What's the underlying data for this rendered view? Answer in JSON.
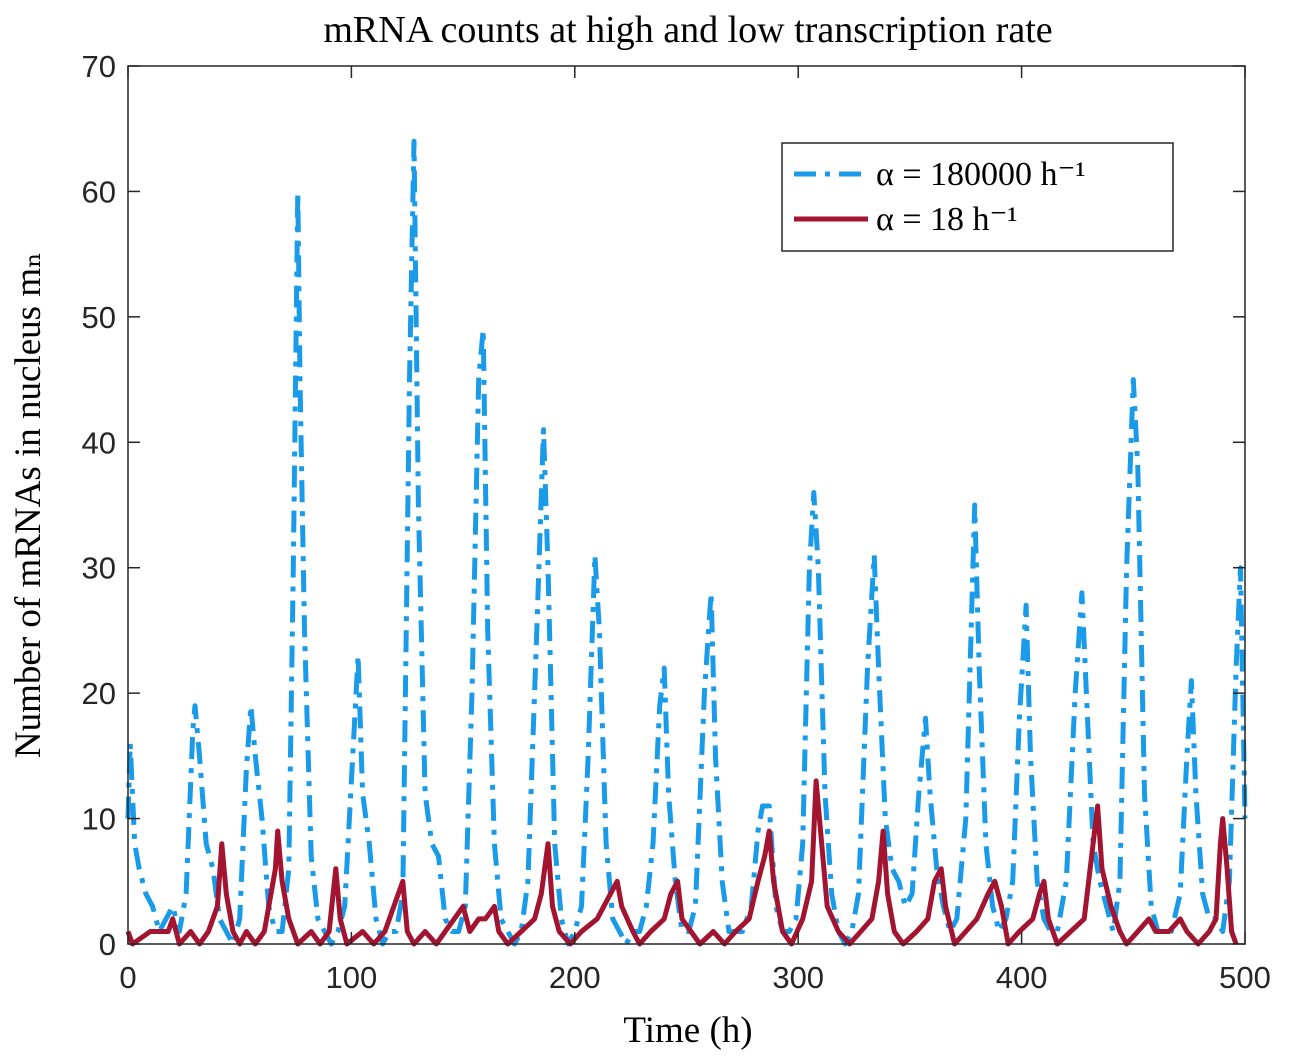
{
  "chart_data": {
    "type": "line",
    "title": "mRNA counts at high and low transcription rate",
    "x_label": "Time (h)",
    "y_label": "Number of mRNAs in nucleus mₙ",
    "xlim": [
      0,
      500
    ],
    "xticks": [
      0,
      100,
      200,
      300,
      400,
      500
    ],
    "ylim": [
      0,
      70
    ],
    "yticks": [
      0,
      10,
      20,
      30,
      40,
      50,
      60,
      70
    ],
    "legend_position": "upper right",
    "series": [
      {
        "name": "α = 180000 h⁻¹",
        "color": "#1a9bea",
        "dash": "dashdot",
        "x": [
          0,
          1,
          3,
          5,
          8,
          11,
          14,
          17,
          20,
          23,
          26,
          29,
          30,
          32,
          35,
          38,
          41,
          44,
          47,
          50,
          53,
          55,
          57,
          60,
          63,
          66,
          69,
          72,
          74,
          76,
          77,
          79,
          82,
          85,
          88,
          91,
          94,
          97,
          100,
          103,
          105,
          108,
          111,
          114,
          117,
          120,
          123,
          126,
          128,
          130,
          133,
          136,
          139,
          142,
          145,
          148,
          151,
          154,
          157,
          159,
          161,
          164,
          167,
          170,
          173,
          176,
          179,
          183,
          186,
          188,
          191,
          194,
          197,
          200,
          203,
          206,
          209,
          211,
          214,
          217,
          220,
          223,
          226,
          229,
          232,
          235,
          238,
          240,
          242,
          245,
          248,
          251,
          254,
          258,
          261,
          263,
          266,
          269,
          272,
          275,
          279,
          282,
          284,
          287,
          290,
          293,
          296,
          299,
          302,
          305,
          307,
          309,
          312,
          315,
          318,
          321,
          324,
          327,
          331,
          334,
          336,
          339,
          342,
          345,
          348,
          351,
          354,
          357,
          359,
          362,
          365,
          368,
          371,
          375,
          379,
          381,
          384,
          387,
          390,
          393,
          396,
          399,
          402,
          404,
          407,
          410,
          413,
          416,
          420,
          424,
          427,
          429,
          432,
          435,
          438,
          441,
          444,
          447,
          450,
          452,
          455,
          458,
          461,
          464,
          467,
          471,
          474,
          476,
          478,
          481,
          484,
          487,
          490,
          493,
          496,
          498,
          500
        ],
        "values": [
          10,
          16,
          8,
          6,
          4,
          3,
          1,
          2,
          3,
          1,
          4,
          17,
          19,
          15,
          8,
          6,
          2,
          1,
          0,
          2,
          14,
          19,
          15,
          10,
          3,
          1,
          1,
          6,
          30,
          60,
          45,
          25,
          7,
          2,
          1,
          0,
          1,
          3,
          13,
          23,
          12,
          8,
          2,
          0,
          1,
          1,
          4,
          45,
          64,
          35,
          12,
          8,
          7,
          2,
          1,
          1,
          3,
          20,
          45,
          49,
          25,
          8,
          2,
          1,
          0,
          1,
          5,
          25,
          41,
          30,
          8,
          2,
          0,
          1,
          3,
          15,
          31,
          25,
          8,
          2,
          1,
          0,
          1,
          1,
          3,
          8,
          19,
          22,
          12,
          5,
          1,
          1,
          3,
          20,
          28,
          15,
          5,
          1,
          1,
          1,
          3,
          9,
          11,
          11,
          3,
          1,
          1,
          2,
          8,
          30,
          36,
          30,
          12,
          4,
          1,
          0,
          1,
          4,
          22,
          31,
          22,
          10,
          6,
          5,
          3,
          4,
          12,
          18,
          12,
          6,
          3,
          1,
          2,
          10,
          35,
          22,
          8,
          3,
          1,
          2,
          5,
          18,
          27,
          15,
          5,
          2,
          1,
          1,
          5,
          20,
          28,
          20,
          8,
          5,
          3,
          1,
          5,
          30,
          45,
          38,
          12,
          3,
          1,
          1,
          1,
          4,
          15,
          21,
          12,
          4,
          2,
          2,
          1,
          5,
          22,
          30,
          10
        ]
      },
      {
        "name": "α = 18 h⁻¹",
        "color": "#a2142f",
        "dash": "solid",
        "x": [
          0,
          2,
          10,
          18,
          20,
          23,
          28,
          32,
          36,
          40,
          42,
          44,
          47,
          50,
          53,
          57,
          61,
          64,
          66,
          67,
          69,
          72,
          76,
          82,
          86,
          90,
          93,
          95,
          98,
          105,
          110,
          115,
          121,
          123,
          125,
          128,
          133,
          138,
          142,
          146,
          150,
          153,
          157,
          160,
          164,
          166,
          170,
          176,
          182,
          185,
          188,
          190,
          193,
          198,
          203,
          210,
          216,
          219,
          221,
          226,
          229,
          234,
          240,
          243,
          246,
          248,
          252,
          256,
          262,
          267,
          272,
          278,
          282,
          285,
          287,
          289,
          293,
          297,
          302,
          306,
          308,
          311,
          313,
          318,
          323,
          328,
          333,
          336,
          338,
          340,
          343,
          347,
          353,
          358,
          361,
          364,
          366,
          370,
          375,
          380,
          385,
          388,
          391,
          394,
          399,
          405,
          408,
          410,
          412,
          416,
          422,
          428,
          432,
          434,
          436,
          440,
          444,
          447,
          452,
          457,
          460,
          466,
          471,
          474,
          479,
          484,
          487,
          489,
          490,
          492,
          494,
          496
        ],
        "values": [
          1,
          0,
          1,
          1,
          2,
          0,
          1,
          0,
          1,
          3,
          8,
          4,
          1,
          0,
          1,
          0,
          1,
          4,
          6,
          9,
          5,
          2,
          0,
          1,
          0,
          1,
          6,
          2,
          0,
          1,
          0,
          1,
          4,
          5,
          1,
          0,
          1,
          0,
          1,
          2,
          3,
          1,
          2,
          2,
          3,
          1,
          0,
          1,
          2,
          4,
          8,
          3,
          1,
          0,
          1,
          2,
          4,
          5,
          3,
          1,
          0,
          1,
          2,
          4,
          5,
          2,
          1,
          0,
          1,
          0,
          1,
          2,
          5,
          7,
          9,
          5,
          1,
          0,
          2,
          5,
          13,
          7,
          3,
          1,
          0,
          1,
          2,
          5,
          9,
          4,
          1,
          0,
          1,
          2,
          5,
          6,
          3,
          0,
          1,
          2,
          4,
          5,
          3,
          0,
          1,
          2,
          4,
          5,
          2,
          0,
          1,
          2,
          8,
          11,
          6,
          3,
          1,
          0,
          1,
          2,
          1,
          1,
          2,
          1,
          0,
          1,
          2,
          8,
          10,
          6,
          1,
          0
        ]
      }
    ]
  }
}
